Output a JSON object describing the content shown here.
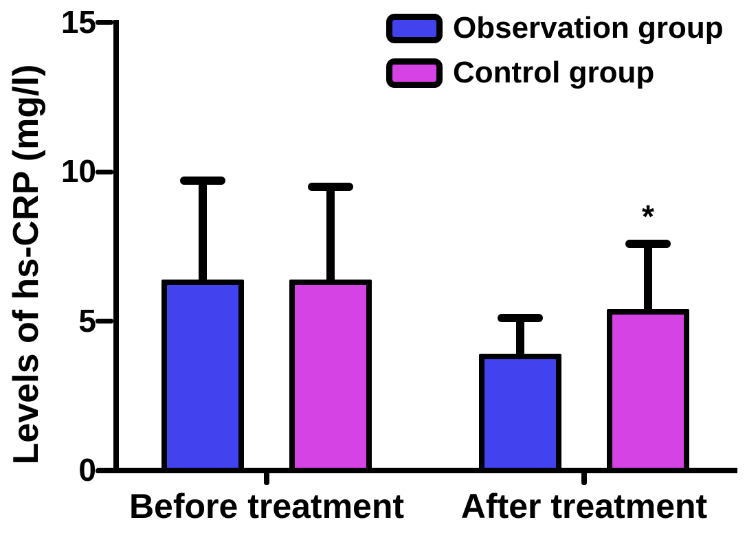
{
  "figure": {
    "kind": "grouped bar chart with error bars"
  },
  "chart_data": {
    "type": "bar",
    "title": "",
    "xlabel": "",
    "ylabel": "Levels of hs-CRP (mg/l)",
    "ylim": [
      0,
      15
    ],
    "yticks": [
      "0",
      "5",
      "10",
      "15"
    ],
    "ytick_values": [
      0,
      5,
      10,
      15
    ],
    "grid": false,
    "legend_position": "top-right",
    "categories": [
      "Before treatment",
      "After treatment"
    ],
    "series": [
      {
        "name": "Observation group",
        "color": "#4342EF",
        "values": [
          6.4,
          3.9
        ],
        "errors_plus": [
          3.3,
          1.2
        ]
      },
      {
        "name": "Control group",
        "color": "#D643E4",
        "values": [
          6.4,
          5.4
        ],
        "errors_plus": [
          3.1,
          2.2
        ]
      }
    ],
    "annotations": [
      {
        "text": "*",
        "series_index": 1,
        "category_index": 1,
        "position": "above-error-bar"
      }
    ]
  }
}
